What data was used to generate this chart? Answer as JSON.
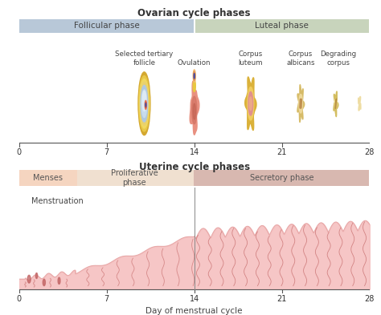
{
  "title_ovarian": "Ovarian cycle phases",
  "title_uterine": "Uterine cycle phases",
  "xlabel": "Day of menstrual cycle",
  "bg_color": "#ffffff",
  "follicular_color": "#b8c8d8",
  "luteal_color": "#c8d4bc",
  "menses_color": "#f5d5c0",
  "proliferative_color": "#f0e0d0",
  "secretory_color": "#d8b8b0",
  "endometrium_fill": "#f5c0c0",
  "endometrium_line": "#c06060",
  "axis_ticks": [
    0,
    7,
    14,
    21,
    28
  ],
  "phase_labels": {
    "follicular": "Follicular phase",
    "luteal": "Luteal phase"
  },
  "uterine_labels": {
    "menses": "Menses",
    "proliferative": "Proliferative\nphase",
    "secretory": "Secretory phase"
  },
  "menstruation_label": "Menstruation"
}
